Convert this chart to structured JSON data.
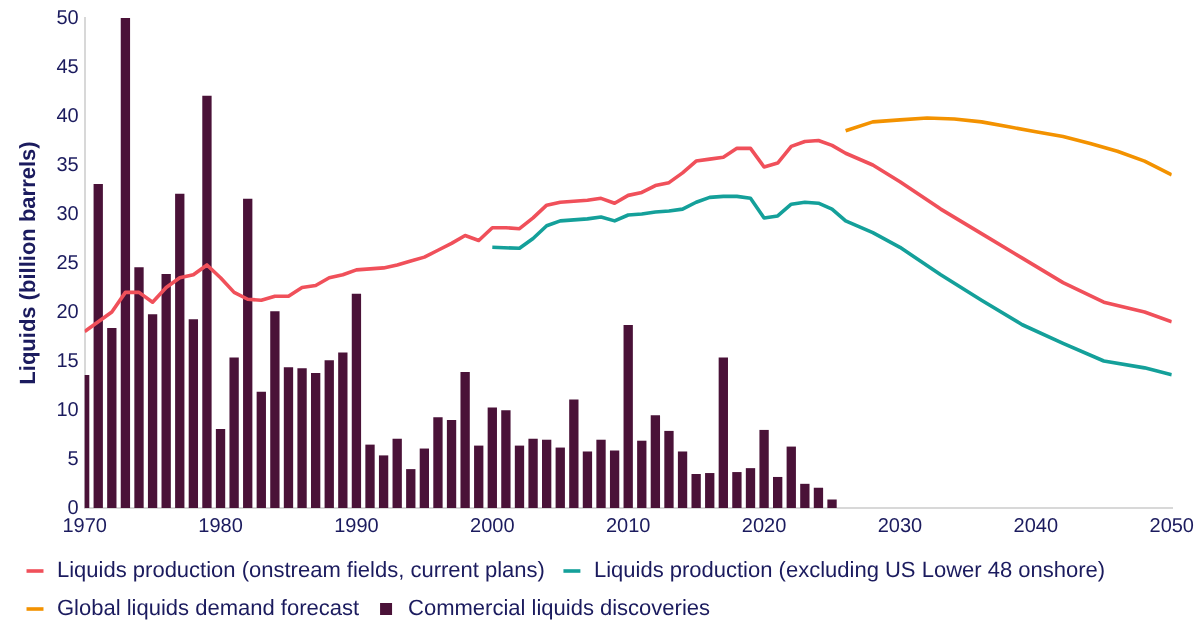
{
  "chart_data": {
    "type": "line",
    "ylabel": "Liquids (billion barrels)",
    "xlim": [
      1970,
      2050
    ],
    "xticks": [
      1970,
      1980,
      1990,
      2000,
      2010,
      2020,
      2030,
      2040,
      2050
    ],
    "ylim": [
      0,
      50
    ],
    "yticks": [
      0,
      5,
      10,
      15,
      20,
      25,
      30,
      35,
      40,
      45,
      50
    ],
    "grid": false,
    "legend": "bottom",
    "marker": "none",
    "series": [
      {
        "name": "Commercial liquids discoveries",
        "type": "bar",
        "color": "#4a1238",
        "x": [
          1970,
          1971,
          1972,
          1973,
          1974,
          1975,
          1976,
          1977,
          1978,
          1979,
          1980,
          1981,
          1982,
          1983,
          1984,
          1985,
          1986,
          1987,
          1988,
          1989,
          1990,
          1991,
          1992,
          1993,
          1994,
          1995,
          1996,
          1997,
          1998,
          1999,
          2000,
          2001,
          2002,
          2003,
          2004,
          2005,
          2006,
          2007,
          2008,
          2009,
          2010,
          2011,
          2012,
          2013,
          2014,
          2015,
          2016,
          2017,
          2018,
          2019,
          2020,
          2021,
          2022,
          2023,
          2024,
          2025
        ],
        "values": [
          13.5,
          33,
          18.3,
          50,
          24.5,
          19.7,
          23.8,
          32,
          19.2,
          42,
          8,
          15.3,
          31.5,
          11.8,
          20,
          14.3,
          14.2,
          13.7,
          15,
          15.8,
          21.8,
          6.4,
          5.3,
          7,
          3.9,
          6,
          9.2,
          8.9,
          13.8,
          6.3,
          10.2,
          9.9,
          6.3,
          7,
          6.9,
          6.1,
          11,
          5.7,
          6.9,
          5.8,
          18.6,
          6.8,
          9.4,
          7.8,
          5.7,
          3.4,
          3.5,
          15.3,
          3.6,
          4,
          7.9,
          3.1,
          6.2,
          2.4,
          2,
          0.8
        ]
      },
      {
        "name": "Liquids production (onstream fields, current plans)",
        "color": "#f0505a",
        "x": [
          1970,
          1972,
          1973,
          1974,
          1975,
          1976,
          1977,
          1978,
          1979,
          1980,
          1981,
          1982,
          1983,
          1984,
          1985,
          1986,
          1987,
          1988,
          1989,
          1990,
          1991,
          1992,
          1993,
          1994,
          1995,
          1996,
          1997,
          1998,
          1999,
          2000,
          2001,
          2002,
          2003,
          2004,
          2005,
          2006,
          2007,
          2008,
          2009,
          2010,
          2011,
          2012,
          2013,
          2014,
          2015,
          2016,
          2017,
          2018,
          2019,
          2020,
          2021,
          2022,
          2023,
          2024,
          2025,
          2026,
          2028,
          2030,
          2033,
          2036,
          2039,
          2042,
          2045,
          2048,
          2050
        ],
        "values": [
          18,
          20,
          22,
          22,
          21,
          22.5,
          23.5,
          23.8,
          24.8,
          23.5,
          22,
          21.3,
          21.2,
          21.6,
          21.6,
          22.5,
          22.7,
          23.5,
          23.8,
          24.3,
          24.4,
          24.5,
          24.8,
          25.2,
          25.6,
          26.3,
          27,
          27.8,
          27.3,
          28.6,
          28.6,
          28.5,
          29.6,
          30.9,
          31.2,
          31.3,
          31.4,
          31.6,
          31.1,
          31.9,
          32.2,
          32.9,
          33.2,
          34.2,
          35.4,
          35.6,
          35.8,
          36.7,
          36.7,
          34.8,
          35.2,
          36.9,
          37.4,
          37.5,
          37,
          36.2,
          35,
          33.3,
          30.5,
          28,
          25.5,
          23,
          21,
          20,
          19
        ]
      },
      {
        "name": "Liquids production (excluding US Lower 48 onshore)",
        "color": "#14a09a",
        "x": [
          2000,
          2002,
          2003,
          2004,
          2005,
          2006,
          2007,
          2008,
          2009,
          2010,
          2011,
          2012,
          2013,
          2014,
          2015,
          2016,
          2017,
          2018,
          2019,
          2020,
          2021,
          2022,
          2023,
          2024,
          2025,
          2026,
          2028,
          2030,
          2033,
          2036,
          2039,
          2042,
          2045,
          2048,
          2050
        ],
        "values": [
          26.6,
          26.5,
          27.5,
          28.8,
          29.3,
          29.4,
          29.5,
          29.7,
          29.3,
          29.9,
          30,
          30.2,
          30.3,
          30.5,
          31.2,
          31.7,
          31.8,
          31.8,
          31.6,
          29.6,
          29.8,
          31,
          31.2,
          31.1,
          30.5,
          29.3,
          28.1,
          26.6,
          23.8,
          21.2,
          18.7,
          16.8,
          15,
          14.3,
          13.6
        ]
      },
      {
        "name": "Global liquids demand forecast",
        "color": "#f39200",
        "x": [
          2026,
          2028,
          2030,
          2032,
          2034,
          2036,
          2038,
          2040,
          2042,
          2044,
          2046,
          2048,
          2050
        ],
        "values": [
          38.5,
          39.4,
          39.6,
          39.8,
          39.7,
          39.4,
          38.9,
          38.4,
          37.9,
          37.2,
          36.4,
          35.4,
          34
        ]
      }
    ]
  }
}
